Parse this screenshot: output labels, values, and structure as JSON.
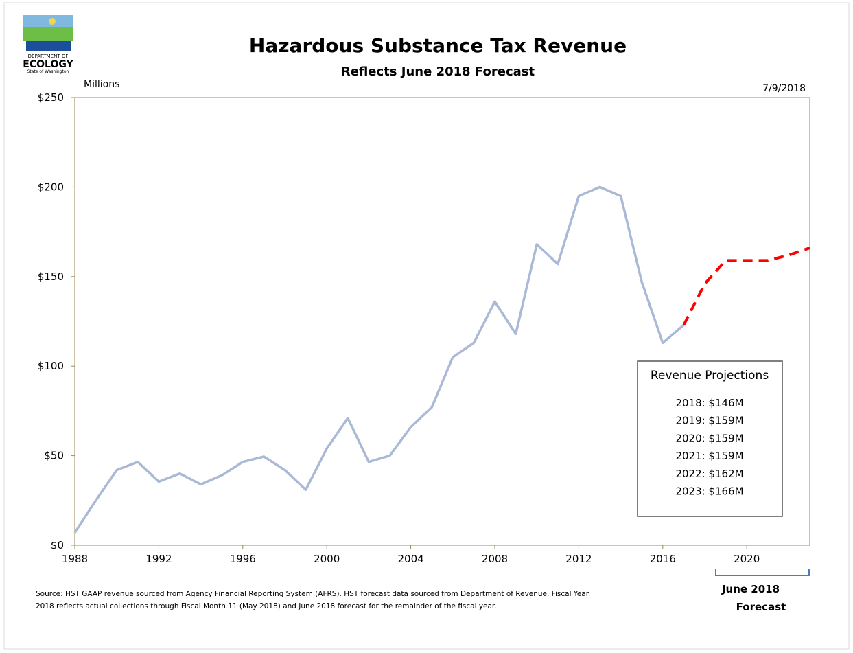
{
  "chart_data": {
    "type": "line",
    "title": "Hazardous Substance Tax Revenue",
    "subtitle": "Reflects June 2018 Forecast",
    "y_axis_label": "Millions",
    "date": "7/9/2018",
    "logo": {
      "line1": "DEPARTMENT OF",
      "line2": "ECOLOGY",
      "line3": "State of Washington"
    },
    "xlim": [
      1988,
      2023
    ],
    "xticks": [
      1988,
      1992,
      1996,
      2000,
      2004,
      2008,
      2012,
      2016,
      2020
    ],
    "ylim": [
      0,
      250
    ],
    "yticks": [
      {
        "value": 0,
        "label": "$0"
      },
      {
        "value": 50,
        "label": "$50"
      },
      {
        "value": 100,
        "label": "$100"
      },
      {
        "value": 150,
        "label": "$150"
      },
      {
        "value": 200,
        "label": "$200"
      },
      {
        "value": 250,
        "label": "$250"
      }
    ],
    "series": [
      {
        "color": "#a9b9d6",
        "dashed": false,
        "x": [
          1988,
          1989,
          1990,
          1991,
          1992,
          1993,
          1994,
          1995,
          1996,
          1997,
          1998,
          1999,
          2000,
          2001,
          2002,
          2003,
          2004,
          2005,
          2006,
          2007,
          2008,
          2009,
          2010,
          2011,
          2012,
          2013,
          2014,
          2015,
          2016,
          2017
        ],
        "values": [
          7,
          25,
          42,
          46.5,
          35.5,
          40,
          34,
          39,
          46.5,
          49.5,
          42,
          31,
          54,
          71,
          46.5,
          50,
          66,
          77,
          105,
          113,
          136,
          118,
          168,
          157,
          195,
          200,
          195,
          147,
          113,
          123
        ]
      },
      {
        "color": "#ff0000",
        "dashed": true,
        "x": [
          2017,
          2018,
          2019,
          2020,
          2021,
          2022,
          2023
        ],
        "values": [
          123,
          146,
          159,
          159,
          159,
          162,
          166
        ]
      }
    ],
    "annotation_box": {
      "title": "Revenue Projections",
      "lines": [
        "2018: $146M",
        "2019: $159M",
        "2020: $159M",
        "2021: $159M",
        "2022: $162M",
        "2023: $166M"
      ]
    },
    "forecast_label": [
      "June 2018",
      "Forecast"
    ],
    "source": [
      "Source: HST GAAP revenue sourced from Agency Financial Reporting System (AFRS).  HST forecast data sourced from Department of Revenue.  Fiscal Year",
      "2018 reflects actual collections through Fiscal Month 11 (May 2018) and June 2018 forecast for the remainder of the fiscal year."
    ]
  }
}
